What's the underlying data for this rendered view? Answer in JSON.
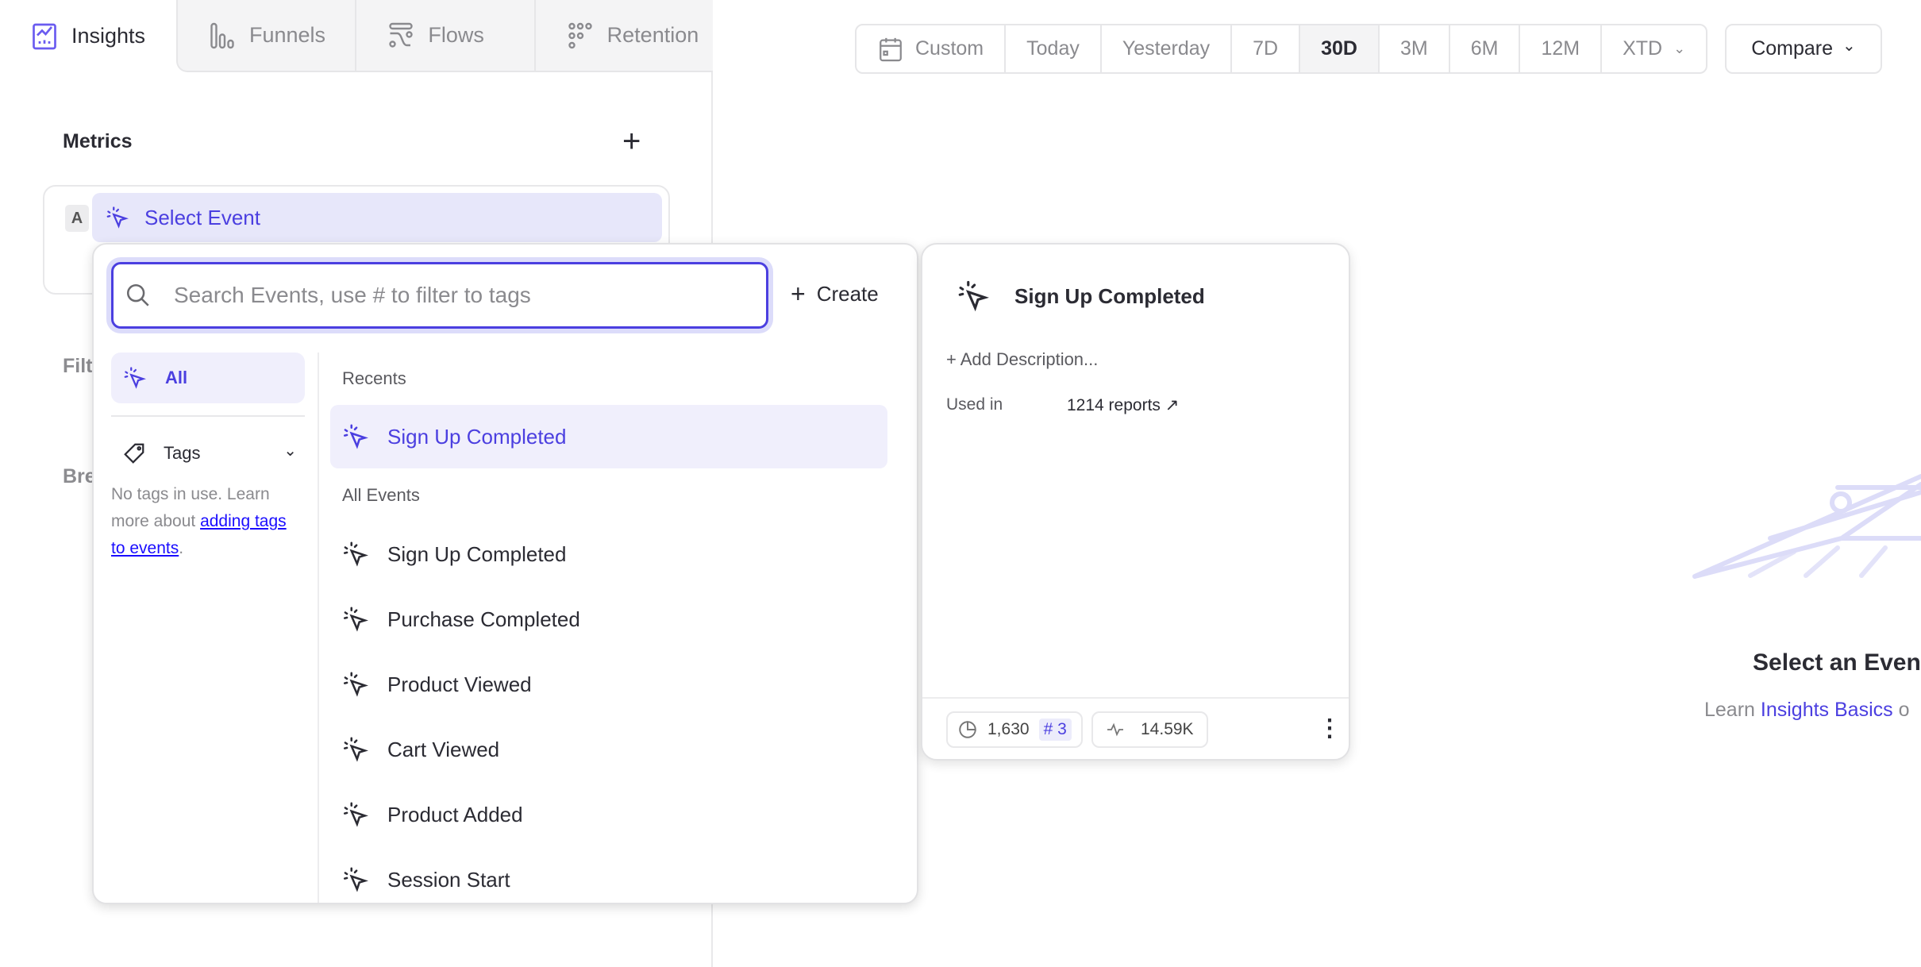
{
  "tabs": [
    {
      "label": "Insights",
      "icon": "insights-chart-icon"
    },
    {
      "label": "Funnels",
      "icon": "funnels-icon"
    },
    {
      "label": "Flows",
      "icon": "flows-icon"
    },
    {
      "label": "Retention",
      "icon": "retention-icon"
    }
  ],
  "left_panel": {
    "metrics_title": "Metrics",
    "metric_letter": "A",
    "select_event_label": "Select Event",
    "filters_partial": "Filt",
    "breakdown_partial": "Bre"
  },
  "dropdown": {
    "search_placeholder": "Search Events, use # to filter to tags",
    "create_label": "Create",
    "nav_all": "All",
    "nav_tags": "Tags",
    "tags_text_1": "No tags in use. Learn more about ",
    "tags_link": "adding tags to events",
    "tags_text_2": ".",
    "recents_label": "Recents",
    "recents": [
      "Sign Up Completed"
    ],
    "all_events_label": "All Events",
    "events": [
      "Sign Up Completed",
      "Purchase Completed",
      "Product Viewed",
      "Cart Viewed",
      "Product Added",
      "Session Start"
    ]
  },
  "detail": {
    "title": "Sign Up Completed",
    "add_description": "+ Add Description...",
    "used_in_label": "Used in",
    "used_in_value": "1214 reports ↗",
    "users_count": "1,630",
    "rank": "# 3",
    "volume": "14.59K"
  },
  "date_range": {
    "options": [
      "Custom",
      "Today",
      "Yesterday",
      "7D",
      "30D",
      "3M",
      "6M",
      "12M",
      "XTD"
    ],
    "selected": "30D",
    "compare_label": "Compare"
  },
  "empty_state": {
    "title": "Select an Event",
    "learn_prefix": "Learn ",
    "learn_link": "Insights Basics",
    "learn_suffix": " o"
  },
  "colors": {
    "accent": "#4b3fe0",
    "highlight": "#f0effc",
    "illustration": "#dcdcf8"
  }
}
